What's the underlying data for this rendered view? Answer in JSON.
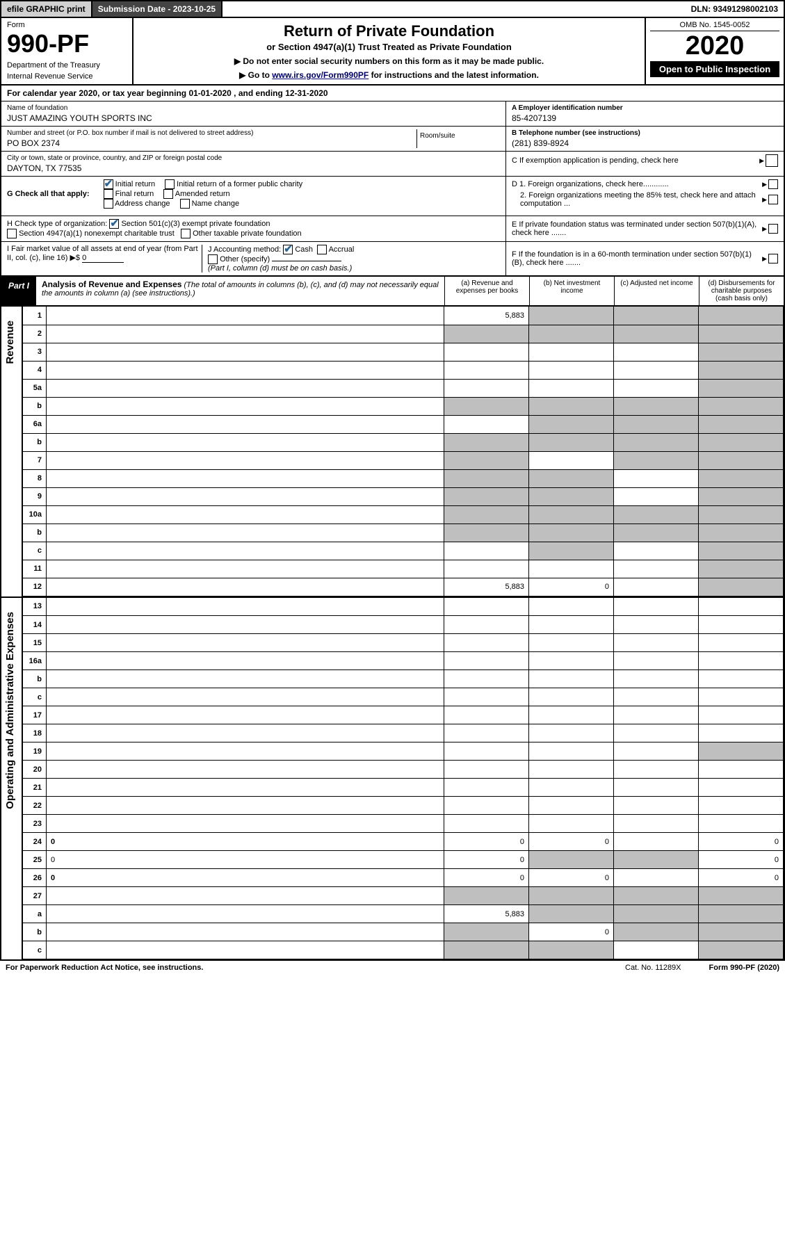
{
  "topbar": {
    "efile": "efile GRAPHIC print",
    "submission": "Submission Date - 2023-10-25",
    "dln": "DLN: 93491298002103"
  },
  "header": {
    "formword": "Form",
    "formno": "990-PF",
    "dept": "Department of the Treasury",
    "irs": "Internal Revenue Service",
    "title": "Return of Private Foundation",
    "subtitle": "or Section 4947(a)(1) Trust Treated as Private Foundation",
    "note1": "▶ Do not enter social security numbers on this form as it may be made public.",
    "note2_pre": "▶ Go to ",
    "note2_link": "www.irs.gov/Form990PF",
    "note2_post": " for instructions and the latest information.",
    "omb": "OMB No. 1545-0052",
    "year": "2020",
    "inspect": "Open to Public Inspection"
  },
  "cal": {
    "pre": "For calendar year 2020, or tax year beginning ",
    "begin": "01-01-2020",
    "mid": " , and ending ",
    "end": "12-31-2020"
  },
  "info": {
    "name_lbl": "Name of foundation",
    "name": "JUST AMAZING YOUTH SPORTS INC",
    "addr_lbl": "Number and street (or P.O. box number if mail is not delivered to street address)",
    "addr": "PO BOX 2374",
    "room_lbl": "Room/suite",
    "city_lbl": "City or town, state or province, country, and ZIP or foreign postal code",
    "city": "DAYTON, TX  77535",
    "ein_lbl": "A Employer identification number",
    "ein": "85-4207139",
    "tel_lbl": "B Telephone number (see instructions)",
    "tel": "(281) 839-8924",
    "c": "C  If exemption application is pending, check here",
    "d1": "D 1. Foreign organizations, check here............",
    "d2": "2. Foreign organizations meeting the 85% test, check here and attach computation ...",
    "e": "E  If private foundation status was terminated under section 507(b)(1)(A), check here .......",
    "f": "F  If the foundation is in a 60-month termination under section 507(b)(1)(B), check here ......."
  },
  "g": {
    "lead": "G Check all that apply:",
    "opts": [
      "Initial return",
      "Initial return of a former public charity",
      "Final return",
      "Amended return",
      "Address change",
      "Name change"
    ],
    "checked": [
      true,
      false,
      false,
      false,
      false,
      false
    ]
  },
  "h": {
    "lead": "H Check type of organization:",
    "o1": "Section 501(c)(3) exempt private foundation",
    "o2": "Section 4947(a)(1) nonexempt charitable trust",
    "o3": "Other taxable private foundation"
  },
  "i": {
    "lead": "I Fair market value of all assets at end of year (from Part II, col. (c), line 16) ▶$ ",
    "val": "0"
  },
  "j": {
    "lead": "J Accounting method:",
    "cash": "Cash",
    "accrual": "Accrual",
    "other": "Other (specify)",
    "note": "(Part I, column (d) must be on cash basis.)"
  },
  "part1": {
    "label": "Part I",
    "title": "Analysis of Revenue and Expenses",
    "title_note": " (The total of amounts in columns (b), (c), and (d) may not necessarily equal the amounts in column (a) (see instructions).)",
    "cols": [
      "(a) Revenue and expenses per books",
      "(b) Net investment income",
      "(c) Adjusted net income",
      "(d) Disbursements for charitable purposes (cash basis only)"
    ]
  },
  "side": {
    "rev": "Revenue",
    "exp": "Operating and Administrative Expenses"
  },
  "rows_rev": [
    {
      "n": "1",
      "d": "",
      "a": "5,883",
      "b": "",
      "c": "",
      "sh": [
        "",
        "b",
        "c",
        "d"
      ]
    },
    {
      "n": "2",
      "d": "",
      "a": "",
      "b": "",
      "c": "",
      "sh": [
        "a",
        "b",
        "c",
        "d"
      ]
    },
    {
      "n": "3",
      "d": "",
      "a": "",
      "b": "",
      "c": "",
      "sh": [
        "",
        "",
        "",
        "d"
      ]
    },
    {
      "n": "4",
      "d": "",
      "a": "",
      "b": "",
      "c": "",
      "sh": [
        "",
        "",
        "",
        "d"
      ]
    },
    {
      "n": "5a",
      "d": "",
      "a": "",
      "b": "",
      "c": "",
      "sh": [
        "",
        "",
        "",
        "d"
      ]
    },
    {
      "n": "b",
      "d": "",
      "a": "",
      "b": "",
      "c": "",
      "sh": [
        "a",
        "b",
        "c",
        "d"
      ]
    },
    {
      "n": "6a",
      "d": "",
      "a": "",
      "b": "",
      "c": "",
      "sh": [
        "",
        "b",
        "c",
        "d"
      ]
    },
    {
      "n": "b",
      "d": "",
      "a": "",
      "b": "",
      "c": "",
      "sh": [
        "a",
        "b",
        "c",
        "d"
      ]
    },
    {
      "n": "7",
      "d": "",
      "a": "",
      "b": "",
      "c": "",
      "sh": [
        "a",
        "",
        "c",
        "d"
      ]
    },
    {
      "n": "8",
      "d": "",
      "a": "",
      "b": "",
      "c": "",
      "sh": [
        "a",
        "b",
        "",
        "d"
      ]
    },
    {
      "n": "9",
      "d": "",
      "a": "",
      "b": "",
      "c": "",
      "sh": [
        "a",
        "b",
        "",
        "d"
      ]
    },
    {
      "n": "10a",
      "d": "",
      "a": "",
      "b": "",
      "c": "",
      "sh": [
        "a",
        "b",
        "c",
        "d"
      ]
    },
    {
      "n": "b",
      "d": "",
      "a": "",
      "b": "",
      "c": "",
      "sh": [
        "a",
        "b",
        "c",
        "d"
      ]
    },
    {
      "n": "c",
      "d": "",
      "a": "",
      "b": "",
      "c": "",
      "sh": [
        "",
        "b",
        "",
        "d"
      ]
    },
    {
      "n": "11",
      "d": "",
      "a": "",
      "b": "",
      "c": "",
      "sh": [
        "",
        "",
        "",
        "d"
      ]
    },
    {
      "n": "12",
      "d": "",
      "a": "5,883",
      "b": "0",
      "c": "",
      "sh": [
        "",
        "",
        "",
        "d"
      ],
      "bold": true
    }
  ],
  "rows_exp": [
    {
      "n": "13",
      "d": "",
      "a": "",
      "b": "",
      "c": ""
    },
    {
      "n": "14",
      "d": "",
      "a": "",
      "b": "",
      "c": ""
    },
    {
      "n": "15",
      "d": "",
      "a": "",
      "b": "",
      "c": ""
    },
    {
      "n": "16a",
      "d": "",
      "a": "",
      "b": "",
      "c": ""
    },
    {
      "n": "b",
      "d": "",
      "a": "",
      "b": "",
      "c": ""
    },
    {
      "n": "c",
      "d": "",
      "a": "",
      "b": "",
      "c": ""
    },
    {
      "n": "17",
      "d": "",
      "a": "",
      "b": "",
      "c": ""
    },
    {
      "n": "18",
      "d": "",
      "a": "",
      "b": "",
      "c": ""
    },
    {
      "n": "19",
      "d": "",
      "a": "",
      "b": "",
      "c": "",
      "sh": [
        "",
        "",
        "",
        "d"
      ]
    },
    {
      "n": "20",
      "d": "",
      "a": "",
      "b": "",
      "c": ""
    },
    {
      "n": "21",
      "d": "",
      "a": "",
      "b": "",
      "c": ""
    },
    {
      "n": "22",
      "d": "",
      "a": "",
      "b": "",
      "c": ""
    },
    {
      "n": "23",
      "d": "",
      "a": "",
      "b": "",
      "c": ""
    },
    {
      "n": "24",
      "d": "0",
      "a": "0",
      "b": "0",
      "c": "",
      "bold": true
    },
    {
      "n": "25",
      "d": "0",
      "a": "0",
      "b": "",
      "c": "",
      "sh": [
        "",
        "b",
        "c",
        ""
      ]
    },
    {
      "n": "26",
      "d": "0",
      "a": "0",
      "b": "0",
      "c": "",
      "bold": true
    },
    {
      "n": "27",
      "d": "",
      "a": "",
      "b": "",
      "c": "",
      "sh": [
        "a",
        "b",
        "c",
        "d"
      ]
    },
    {
      "n": "a",
      "d": "",
      "a": "5,883",
      "b": "",
      "c": "",
      "sh": [
        "",
        "b",
        "c",
        "d"
      ],
      "bold": true
    },
    {
      "n": "b",
      "d": "",
      "a": "",
      "b": "0",
      "c": "",
      "sh": [
        "a",
        "",
        "c",
        "d"
      ],
      "bold": true
    },
    {
      "n": "c",
      "d": "",
      "a": "",
      "b": "",
      "c": "",
      "sh": [
        "a",
        "b",
        "",
        "d"
      ],
      "bold": true
    }
  ],
  "footer": {
    "left": "For Paperwork Reduction Act Notice, see instructions.",
    "mid": "Cat. No. 11289X",
    "right": "Form 990-PF (2020)"
  }
}
